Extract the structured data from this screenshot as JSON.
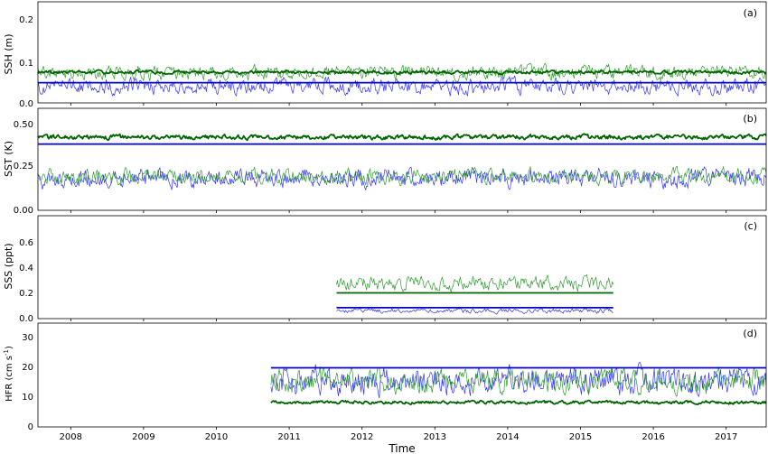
{
  "chart_data": [
    {
      "type": "line",
      "panel_tag": "(a)",
      "ylabel": "SSH (m)",
      "yticks": [
        "0.0",
        "0.1",
        "0.2"
      ],
      "ylim": [
        0,
        0.24
      ],
      "xlim": [
        2007.55,
        2017.55
      ],
      "colors": {
        "thin_blue": "#3333ff",
        "thin_green": "#2e9b2e",
        "thick_green": "#006400",
        "thick_blue": "#0000c8"
      },
      "series": [
        {
          "style": "thin_blue",
          "pattern": {
            "start": 2007.55,
            "end": 2017.55,
            "base": 0.04,
            "amp": 0.02,
            "seed": 11
          }
        },
        {
          "style": "thin_green",
          "pattern": {
            "start": 2007.55,
            "end": 2017.55,
            "base": 0.072,
            "amp": 0.018,
            "seed": 12
          }
        },
        {
          "style": "thick_green",
          "pattern": {
            "start": 2007.55,
            "end": 2017.55,
            "base": 0.073,
            "amp": 0.004,
            "seed": 13
          }
        },
        {
          "style": "thick_blue",
          "pattern": {
            "start": 2007.55,
            "end": 2017.55,
            "base": 0.048,
            "amp": 0.0,
            "seed": 14
          }
        }
      ]
    },
    {
      "type": "line",
      "panel_tag": "(b)",
      "ylabel": "SST (K)",
      "yticks": [
        "0.00",
        "0.25",
        "0.50"
      ],
      "ylim": [
        0,
        0.6
      ],
      "xlim": [
        2007.55,
        2017.55
      ],
      "colors": {
        "thin_blue": "#3333ff",
        "thin_green": "#2e9b2e",
        "thick_green": "#006400",
        "thick_blue": "#0000c8"
      },
      "series": [
        {
          "style": "thin_blue",
          "pattern": {
            "start": 2007.55,
            "end": 2017.55,
            "base": 0.19,
            "amp": 0.06,
            "seed": 21
          }
        },
        {
          "style": "thin_green",
          "pattern": {
            "start": 2007.55,
            "end": 2017.55,
            "base": 0.2,
            "amp": 0.05,
            "seed": 22
          }
        },
        {
          "style": "thick_green",
          "pattern": {
            "start": 2007.55,
            "end": 2017.55,
            "base": 0.43,
            "amp": 0.015,
            "seed": 23
          }
        },
        {
          "style": "thick_blue",
          "pattern": {
            "start": 2007.55,
            "end": 2017.55,
            "base": 0.39,
            "amp": 0.0,
            "seed": 24
          }
        }
      ]
    },
    {
      "type": "line",
      "panel_tag": "(c)",
      "ylabel": "SSS (ppt)",
      "yticks": [
        "0.0",
        "0.2",
        "0.4",
        "0.6"
      ],
      "ylim": [
        0,
        0.8
      ],
      "xlim": [
        2007.55,
        2017.55
      ],
      "colors": {
        "thin_blue": "#3333ff",
        "thin_green": "#2e9b2e",
        "thick_green": "#006400",
        "thick_blue": "#0000c8"
      },
      "series": [
        {
          "style": "thin_green",
          "pattern": {
            "start": 2011.65,
            "end": 2015.45,
            "base": 0.27,
            "amp": 0.06,
            "seed": 31
          }
        },
        {
          "style": "thin_blue",
          "pattern": {
            "start": 2011.65,
            "end": 2015.45,
            "base": 0.06,
            "amp": 0.02,
            "seed": 32
          }
        },
        {
          "style": "thick_green",
          "pattern": {
            "start": 2011.65,
            "end": 2015.45,
            "base": 0.2,
            "amp": 0.0,
            "seed": 33
          }
        },
        {
          "style": "thick_blue",
          "pattern": {
            "start": 2011.65,
            "end": 2015.45,
            "base": 0.085,
            "amp": 0.0,
            "seed": 34
          }
        }
      ]
    },
    {
      "type": "line",
      "panel_tag": "(d)",
      "ylabel": "HFR (cm s",
      "ylabel_sup": "-1",
      "ylabel_close": ")",
      "yticks": [
        "0",
        "10",
        "20",
        "30"
      ],
      "ylim": [
        0,
        36
      ],
      "xlim": [
        2007.55,
        2017.55
      ],
      "xlabel": "Time",
      "xticks": [
        "2008",
        "2009",
        "2010",
        "2011",
        "2012",
        "2013",
        "2014",
        "2015",
        "2016",
        "2017"
      ],
      "colors": {
        "thin_blue": "#3333ff",
        "thin_green": "#2e9b2e",
        "thick_green": "#006400",
        "thick_blue": "#0000c8"
      },
      "series": [
        {
          "style": "thin_blue",
          "pattern": {
            "start": 2010.75,
            "end": 2017.55,
            "base": 16,
            "amp": 5,
            "seed": 41
          }
        },
        {
          "style": "thin_green",
          "pattern": {
            "start": 2010.75,
            "end": 2017.55,
            "base": 16,
            "amp": 4.5,
            "seed": 42
          }
        },
        {
          "style": "thick_green",
          "pattern": {
            "start": 2010.75,
            "end": 2017.55,
            "base": 8.5,
            "amp": 0.6,
            "seed": 43
          }
        },
        {
          "style": "thick_blue",
          "pattern": {
            "start": 2010.75,
            "end": 2017.55,
            "base": 20.5,
            "amp": 0.0,
            "seed": 44
          }
        }
      ]
    }
  ]
}
